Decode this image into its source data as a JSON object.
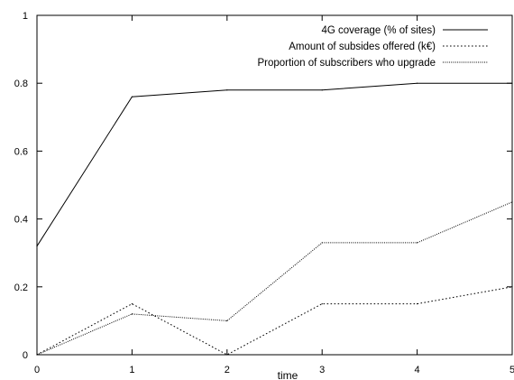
{
  "chart_data": {
    "type": "line",
    "xlabel": "time",
    "ylabel": "",
    "xlim": [
      0,
      5
    ],
    "ylim": [
      0,
      1
    ],
    "x_ticks": [
      "0",
      "1",
      "2",
      "3",
      "4",
      "5"
    ],
    "y_ticks": [
      "0",
      "0.2",
      "0.4",
      "0.6",
      "0.8",
      "1"
    ],
    "grid": false,
    "legend_position": "top-right",
    "x": [
      0,
      1,
      2,
      3,
      4,
      5
    ],
    "series": [
      {
        "name": "4G coverage (% of sites)",
        "style": "solid",
        "color": "#000000",
        "values": [
          0.32,
          0.76,
          0.78,
          0.78,
          0.8,
          0.8
        ]
      },
      {
        "name": "Amount of subsides offered (k€)",
        "style": "dotted",
        "color": "#000000",
        "values": [
          0.0,
          0.15,
          0.0,
          0.15,
          0.15,
          0.2
        ]
      },
      {
        "name": "Proportion of subscribers who upgrade",
        "style": "dense-dotted",
        "color": "#000000",
        "values": [
          0.0,
          0.12,
          0.1,
          0.33,
          0.33,
          0.45
        ]
      }
    ]
  }
}
